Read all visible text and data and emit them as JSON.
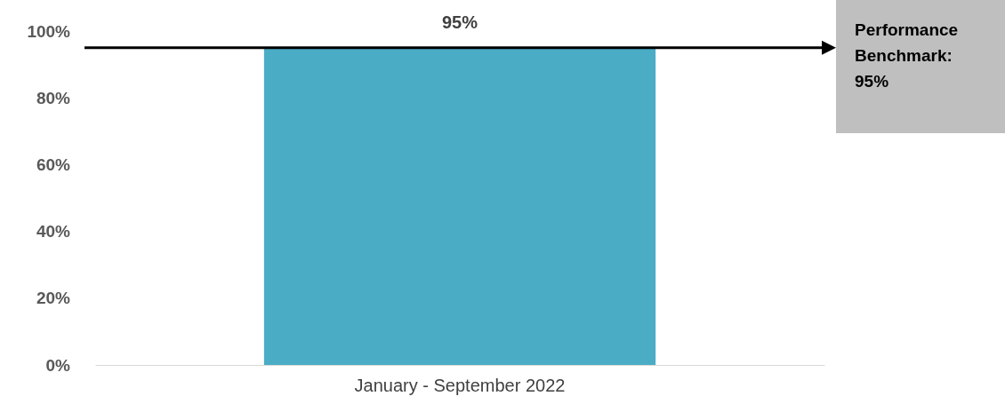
{
  "chart_data": {
    "type": "bar",
    "categories": [
      "January - September 2022"
    ],
    "values": [
      95
    ],
    "color": "#4bacc6",
    "value_labels": [
      "95%"
    ],
    "ylim": [
      0,
      100
    ],
    "yticks": [
      {
        "value": 0,
        "label": "0%"
      },
      {
        "value": 20,
        "label": "20%"
      },
      {
        "value": 40,
        "label": "40%"
      },
      {
        "value": 60,
        "label": "60%"
      },
      {
        "value": 80,
        "label": "80%"
      },
      {
        "value": 100,
        "label": "100%"
      }
    ],
    "grid": false,
    "ref_lines": [
      {
        "axis": "y",
        "value": 95,
        "label": "Performance Benchmark: 95%",
        "color": "#000000"
      }
    ]
  }
}
